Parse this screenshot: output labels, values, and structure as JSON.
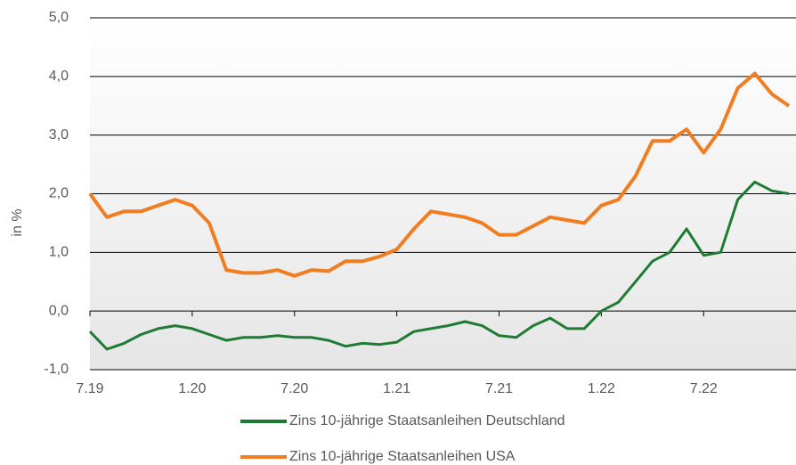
{
  "chart_data": {
    "type": "line",
    "y_label": "in %",
    "categories": [
      "7.19",
      null,
      null,
      null,
      null,
      null,
      "1.20",
      null,
      null,
      null,
      null,
      null,
      "7.20",
      null,
      null,
      null,
      null,
      null,
      "1.21",
      null,
      null,
      null,
      null,
      null,
      "7.21",
      null,
      null,
      null,
      null,
      null,
      "1.22",
      null,
      null,
      null,
      null,
      null,
      "7.22",
      null,
      null,
      null,
      null,
      null
    ],
    "series": [
      {
        "name": "Zins 10-jährige Staatsanleihen Deutschland",
        "color": "#1e7b34",
        "values": [
          -0.35,
          -0.65,
          -0.55,
          -0.4,
          -0.3,
          -0.25,
          -0.3,
          -0.4,
          -0.5,
          -0.45,
          -0.45,
          -0.42,
          -0.45,
          -0.45,
          -0.5,
          -0.6,
          -0.55,
          -0.57,
          -0.53,
          -0.35,
          -0.3,
          -0.25,
          -0.18,
          -0.25,
          -0.42,
          -0.45,
          -0.25,
          -0.12,
          -0.3,
          -0.3,
          0.0,
          0.15,
          0.5,
          0.85,
          1.0,
          1.4,
          0.95,
          1.0,
          1.9,
          2.2,
          2.05,
          2.0
        ]
      },
      {
        "name": "Zins 10-jährige Staatsanleihen USA",
        "color": "#f07d20",
        "values": [
          2.0,
          1.6,
          1.7,
          1.7,
          1.8,
          1.9,
          1.8,
          1.5,
          0.7,
          0.65,
          0.65,
          0.7,
          0.6,
          0.7,
          0.68,
          0.85,
          0.85,
          0.93,
          1.05,
          1.4,
          1.7,
          1.65,
          1.6,
          1.5,
          1.3,
          1.3,
          1.45,
          1.6,
          1.55,
          1.5,
          1.8,
          1.9,
          2.3,
          2.9,
          2.9,
          3.1,
          2.7,
          3.1,
          3.8,
          4.05,
          3.7,
          3.5
        ]
      }
    ],
    "ylim": [
      -1,
      5
    ],
    "yticks": [
      {
        "value": -1,
        "label": "-1,0"
      },
      {
        "value": 0,
        "label": "0,0"
      },
      {
        "value": 1,
        "label": "1,0"
      },
      {
        "value": 2,
        "label": "2,0"
      },
      {
        "value": 3,
        "label": "3,0"
      },
      {
        "value": 4,
        "label": "4,0"
      },
      {
        "value": 5,
        "label": "5,0"
      }
    ],
    "grid": true
  }
}
